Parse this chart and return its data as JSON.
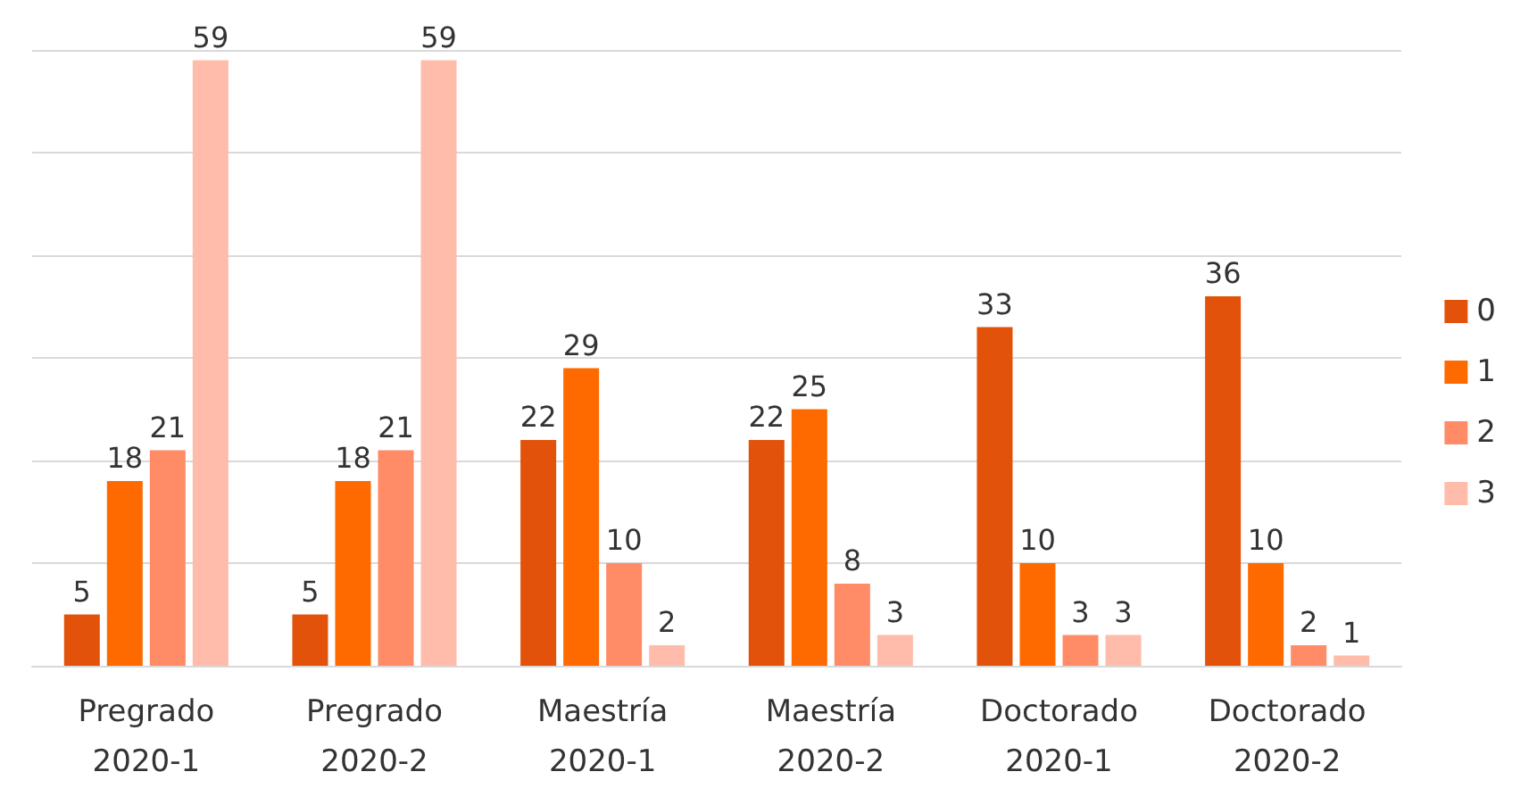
{
  "chart_data": {
    "type": "bar",
    "categories": [
      "Pregrado\n2020-1",
      "Pregrado\n2020-2",
      "Maestría\n2020-1",
      "Maestría\n2020-2",
      "Doctorado\n2020-1",
      "Doctorado\n2020-2"
    ],
    "series": [
      {
        "name": "0",
        "color": "#e2520a",
        "values": [
          5,
          5,
          22,
          22,
          33,
          36
        ]
      },
      {
        "name": "1",
        "color": "#ff6a00",
        "values": [
          18,
          18,
          29,
          25,
          10,
          10
        ]
      },
      {
        "name": "2",
        "color": "#ff8c66",
        "values": [
          21,
          21,
          10,
          8,
          3,
          2
        ]
      },
      {
        "name": "3",
        "color": "#ffbcaa",
        "values": [
          59,
          59,
          2,
          3,
          3,
          1
        ]
      }
    ],
    "ylim": [
      0,
      60
    ],
    "yticks": [
      0,
      10,
      20,
      30,
      40,
      50,
      60
    ],
    "tick_labels": "x",
    "grid": "y",
    "legend": "right",
    "data_labels": true
  }
}
